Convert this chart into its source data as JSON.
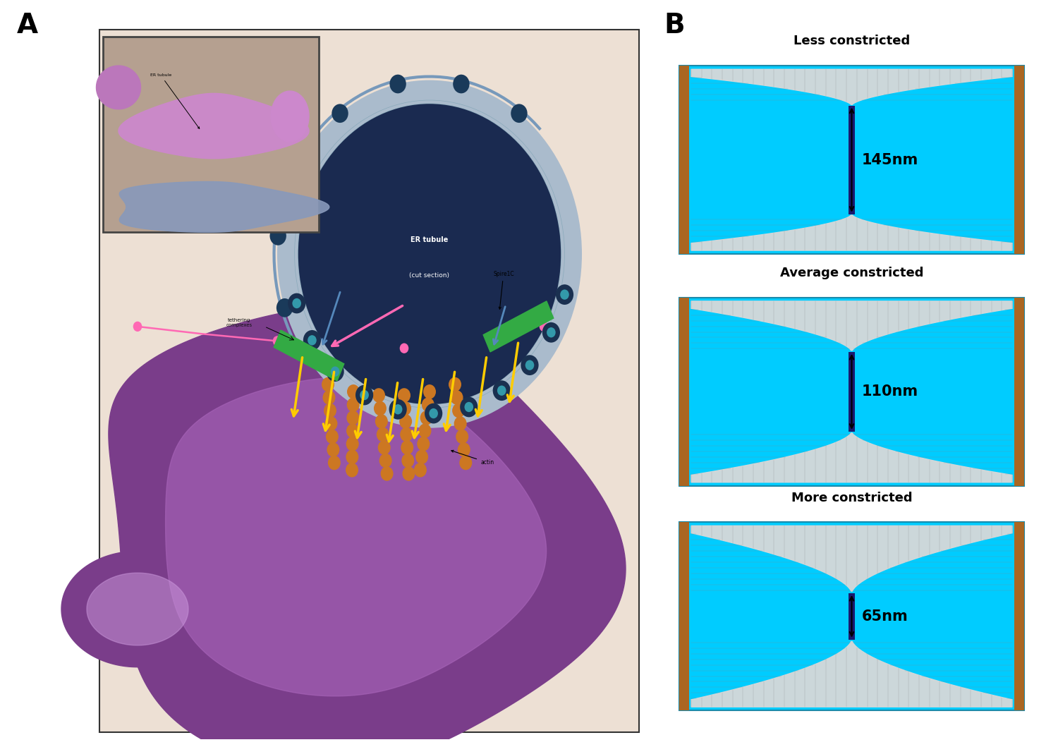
{
  "panel_A_label": "A",
  "panel_B_label": "B",
  "label_fontsize": 28,
  "label_fontweight": "bold",
  "bg_color": "#ffffff",
  "panel_A_bg": "#ede0d4",
  "inset_bg": "#b5a090",
  "er_tubule_fill": "#1a2a50",
  "er_tubule_border": "#8aaabb",
  "er_ring_color": "#aabbcc",
  "mito_color": "#7a3d8a",
  "mito_inner_color": "#aa66bb",
  "mito_lobe_color": "#7a3d8a",
  "mito_lobe_inner": "#cc99dd",
  "inf2_dot_color": "#1a3a5a",
  "inf2_arc_color": "#7799bb",
  "tethering_color": "#33aa44",
  "arrow_yellow": "#ffcc00",
  "arrow_pink": "#ff69b4",
  "arrow_blue": "#5588bb",
  "spire_line_color": "#ff69b4",
  "spire_dot_color": "#ff69b4",
  "actin_bead_color": "#cc7722",
  "dark_blue_dot": "#1a3050",
  "teal_dot": "#3399aa",
  "inset_mito_color": "#8899bb",
  "inset_er_color": "#cc88cc",
  "inset_blob1": "#bb77bb",
  "inset_blob2": "#cc88cc",
  "less_title": "Less constricted",
  "avg_title": "Average constricted",
  "more_title": "More constricted",
  "less_nm": "145nm",
  "avg_nm": "110nm",
  "more_nm": "65nm",
  "cyan_bg": "#00ccff",
  "constriction_bar_color": "#1a1a6e",
  "mesh_line_color": "#888888",
  "edge_color": "#aa6622",
  "gray_mesh": "#d8d8d8",
  "title_fontsize": 13,
  "nm_fontsize": 15,
  "panel_label_fontsize": 28,
  "er_text_color": "#ffffff",
  "label_color": "#111111"
}
